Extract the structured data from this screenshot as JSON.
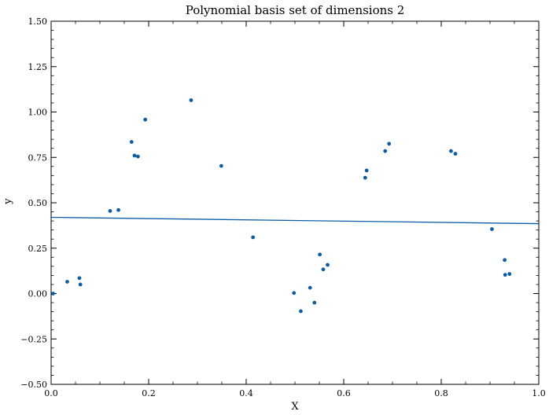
{
  "chart_data": {
    "type": "scatter",
    "title": "Polynomial basis set of dimensions 2",
    "xlabel": "X",
    "ylabel": "y",
    "xlim": [
      0,
      1
    ],
    "ylim": [
      -0.5,
      1.5
    ],
    "xticks": [
      "0.0",
      "0.2",
      "0.4",
      "0.6",
      "0.8",
      "1.0"
    ],
    "yticks": [
      "−0.50",
      "−0.25",
      "0.00",
      "0.25",
      "0.50",
      "0.75",
      "1.00",
      "1.25",
      "1.50"
    ],
    "grid": false,
    "series": [
      {
        "kind": "scatter",
        "color": "#0C5DA5",
        "points": [
          [
            0.004,
            0.0
          ],
          [
            0.033,
            0.065
          ],
          [
            0.058,
            0.085
          ],
          [
            0.06,
            0.05
          ],
          [
            0.121,
            0.455
          ],
          [
            0.138,
            0.46
          ],
          [
            0.165,
            0.835
          ],
          [
            0.171,
            0.76
          ],
          [
            0.178,
            0.755
          ],
          [
            0.193,
            0.958
          ],
          [
            0.287,
            1.065
          ],
          [
            0.349,
            0.703
          ],
          [
            0.414,
            0.31
          ],
          [
            0.498,
            0.003
          ],
          [
            0.512,
            -0.097
          ],
          [
            0.531,
            0.032
          ],
          [
            0.54,
            -0.05
          ],
          [
            0.551,
            0.215
          ],
          [
            0.558,
            0.133
          ],
          [
            0.567,
            0.158
          ],
          [
            0.644,
            0.638
          ],
          [
            0.647,
            0.678
          ],
          [
            0.685,
            0.785
          ],
          [
            0.693,
            0.825
          ],
          [
            0.82,
            0.785
          ],
          [
            0.829,
            0.77
          ],
          [
            0.904,
            0.355
          ],
          [
            0.93,
            0.185
          ],
          [
            0.931,
            0.103
          ],
          [
            0.94,
            0.108
          ]
        ]
      },
      {
        "kind": "line",
        "color": "#0C5DA5",
        "points": [
          [
            0.0,
            0.42
          ],
          [
            1.0,
            0.385
          ]
        ]
      }
    ]
  }
}
